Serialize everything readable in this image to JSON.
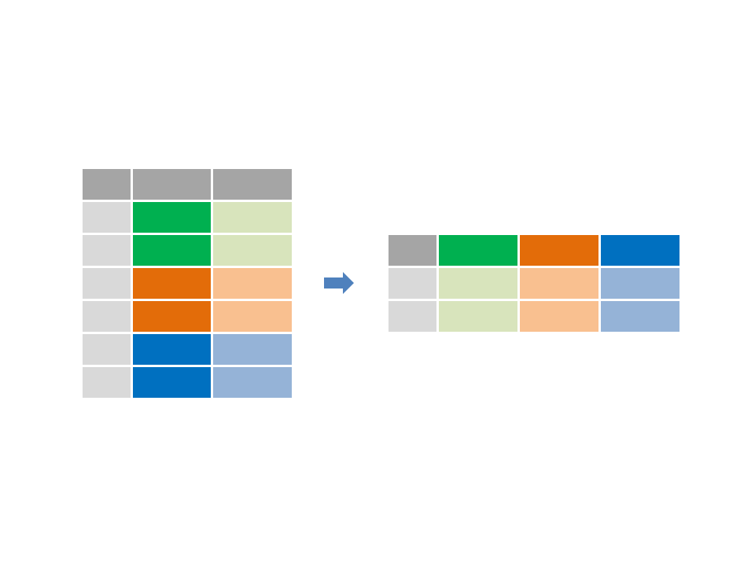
{
  "palette": {
    "header_gray": "#a5a5a5",
    "id_gray": "#d9d9d9",
    "green": "#00b050",
    "green_light": "#d8e4bc",
    "orange": "#e36c09",
    "orange_light": "#f9c090",
    "blue": "#0070c0",
    "blue_light": "#95b3d7",
    "arrow": "#4f81bd"
  },
  "long_table": {
    "rows": [
      [
        "header_gray",
        "header_gray",
        "header_gray"
      ],
      [
        "id_gray",
        "green",
        "green_light"
      ],
      [
        "id_gray",
        "green",
        "green_light"
      ],
      [
        "id_gray",
        "orange",
        "orange_light"
      ],
      [
        "id_gray",
        "orange",
        "orange_light"
      ],
      [
        "id_gray",
        "blue",
        "blue_light"
      ],
      [
        "id_gray",
        "blue",
        "blue_light"
      ]
    ]
  },
  "transform_arrow": {
    "icon": "right-arrow-icon"
  },
  "wide_table": {
    "rows": [
      [
        "header_gray",
        "green",
        "orange",
        "blue"
      ],
      [
        "id_gray",
        "green_light",
        "orange_light",
        "blue_light"
      ],
      [
        "id_gray",
        "green_light",
        "orange_light",
        "blue_light"
      ]
    ]
  }
}
